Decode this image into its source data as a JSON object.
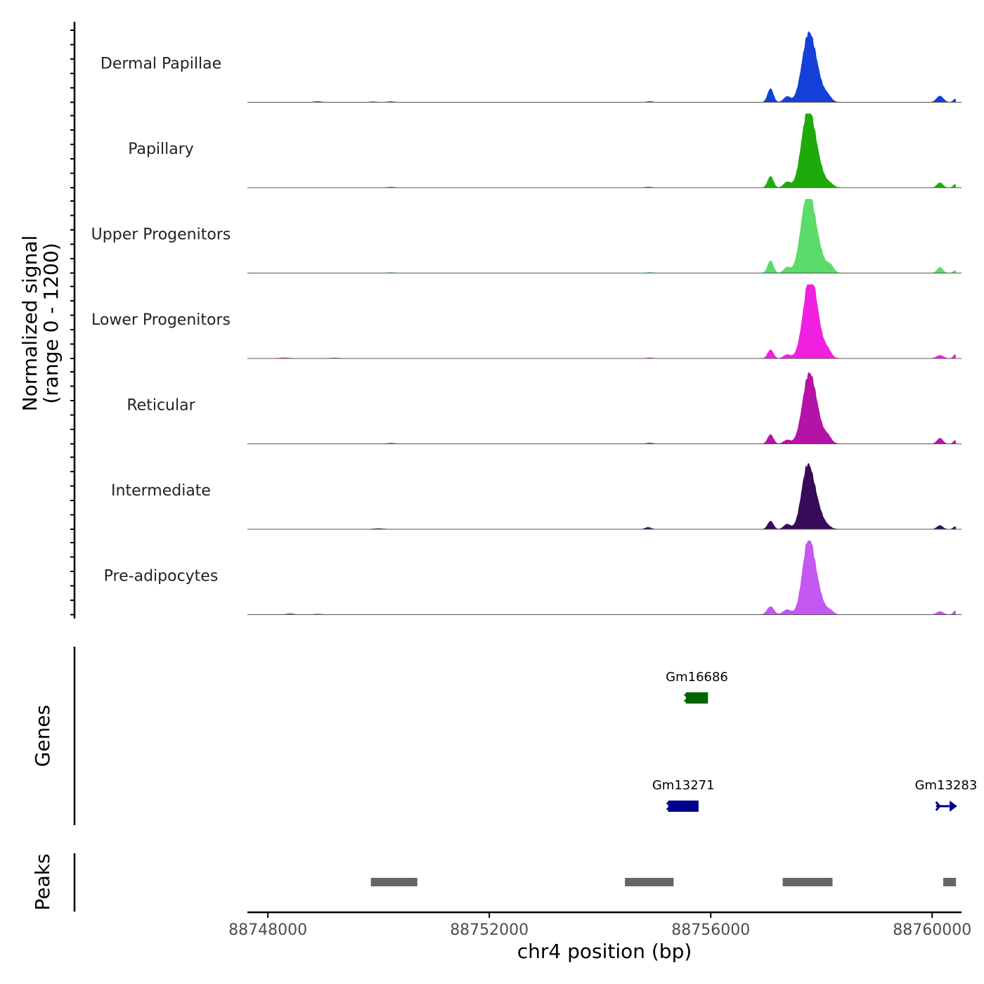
{
  "chart_data": {
    "type": "area",
    "title": "",
    "ylabel": "Normalized signal",
    "ylabel_range": "(range 0 - 1200)",
    "ylim": [
      0,
      1200
    ],
    "xlabel": "chr4 position (bp)",
    "xlim": [
      88747630,
      88760530
    ],
    "xticks": [
      88748000,
      88752000,
      88756000,
      88760000
    ],
    "xtick_labels": [
      "88748000",
      "88752000",
      "88756000",
      "88760000"
    ],
    "series": [
      {
        "name": "Dermal Papillae",
        "color": "#1440D8",
        "peaks": [
          {
            "x": 88748900,
            "y": 12,
            "w": 60
          },
          {
            "x": 88749900,
            "y": 8,
            "w": 60
          },
          {
            "x": 88750220,
            "y": 10,
            "w": 60
          },
          {
            "x": 88754900,
            "y": 12,
            "w": 50
          },
          {
            "x": 88757080,
            "y": 220,
            "w": 50
          },
          {
            "x": 88757380,
            "y": 90,
            "w": 60
          },
          {
            "x": 88757750,
            "y": 700,
            "w": 110
          },
          {
            "x": 88757850,
            "y": 520,
            "w": 140
          },
          {
            "x": 88758120,
            "y": 60,
            "w": 60
          },
          {
            "x": 88760140,
            "y": 100,
            "w": 60
          },
          {
            "x": 88760410,
            "y": 50,
            "w": 30
          }
        ]
      },
      {
        "name": "Papillary",
        "color": "#1CAB0A",
        "peaks": [
          {
            "x": 88750220,
            "y": 10,
            "w": 60
          },
          {
            "x": 88754870,
            "y": 12,
            "w": 50
          },
          {
            "x": 88757080,
            "y": 180,
            "w": 50
          },
          {
            "x": 88757380,
            "y": 90,
            "w": 60
          },
          {
            "x": 88757740,
            "y": 850,
            "w": 110
          },
          {
            "x": 88757850,
            "y": 550,
            "w": 140
          },
          {
            "x": 88758160,
            "y": 40,
            "w": 60
          },
          {
            "x": 88760140,
            "y": 80,
            "w": 50
          },
          {
            "x": 88760410,
            "y": 50,
            "w": 30
          }
        ]
      },
      {
        "name": "Upper Progenitors",
        "color": "#5ADB6A",
        "peaks": [
          {
            "x": 88750220,
            "y": 8,
            "w": 60
          },
          {
            "x": 88754900,
            "y": 10,
            "w": 50
          },
          {
            "x": 88757080,
            "y": 200,
            "w": 50
          },
          {
            "x": 88757380,
            "y": 90,
            "w": 60
          },
          {
            "x": 88757730,
            "y": 880,
            "w": 110
          },
          {
            "x": 88757850,
            "y": 600,
            "w": 140
          },
          {
            "x": 88758160,
            "y": 100,
            "w": 60
          },
          {
            "x": 88760140,
            "y": 90,
            "w": 50
          },
          {
            "x": 88760410,
            "y": 40,
            "w": 30
          }
        ]
      },
      {
        "name": "Lower Progenitors",
        "color": "#F020E0",
        "peaks": [
          {
            "x": 88748300,
            "y": 10,
            "w": 80
          },
          {
            "x": 88749200,
            "y": 8,
            "w": 80
          },
          {
            "x": 88754900,
            "y": 10,
            "w": 50
          },
          {
            "x": 88757080,
            "y": 140,
            "w": 50
          },
          {
            "x": 88757380,
            "y": 60,
            "w": 60
          },
          {
            "x": 88757780,
            "y": 820,
            "w": 110
          },
          {
            "x": 88757850,
            "y": 600,
            "w": 140
          },
          {
            "x": 88758120,
            "y": 80,
            "w": 60
          },
          {
            "x": 88760140,
            "y": 50,
            "w": 60
          },
          {
            "x": 88760410,
            "y": 60,
            "w": 30
          }
        ]
      },
      {
        "name": "Reticular",
        "color": "#B512A8",
        "peaks": [
          {
            "x": 88750220,
            "y": 10,
            "w": 60
          },
          {
            "x": 88754900,
            "y": 14,
            "w": 50
          },
          {
            "x": 88757080,
            "y": 150,
            "w": 50
          },
          {
            "x": 88757380,
            "y": 60,
            "w": 60
          },
          {
            "x": 88757760,
            "y": 720,
            "w": 110
          },
          {
            "x": 88757850,
            "y": 500,
            "w": 140
          },
          {
            "x": 88758120,
            "y": 80,
            "w": 60
          },
          {
            "x": 88760140,
            "y": 90,
            "w": 50
          },
          {
            "x": 88760410,
            "y": 50,
            "w": 30
          }
        ]
      },
      {
        "name": "Intermediate",
        "color": "#380A5A",
        "peaks": [
          {
            "x": 88750000,
            "y": 10,
            "w": 80
          },
          {
            "x": 88754870,
            "y": 30,
            "w": 50
          },
          {
            "x": 88757080,
            "y": 130,
            "w": 50
          },
          {
            "x": 88757380,
            "y": 80,
            "w": 60
          },
          {
            "x": 88757730,
            "y": 690,
            "w": 100
          },
          {
            "x": 88757850,
            "y": 500,
            "w": 130
          },
          {
            "x": 88758120,
            "y": 20,
            "w": 60
          },
          {
            "x": 88760140,
            "y": 60,
            "w": 50
          },
          {
            "x": 88760410,
            "y": 40,
            "w": 30
          }
        ]
      },
      {
        "name": "Pre-adipocytes",
        "color": "#C557F2",
        "peaks": [
          {
            "x": 88748400,
            "y": 20,
            "w": 60
          },
          {
            "x": 88748900,
            "y": 12,
            "w": 60
          },
          {
            "x": 88757080,
            "y": 130,
            "w": 60
          },
          {
            "x": 88757380,
            "y": 80,
            "w": 70
          },
          {
            "x": 88757750,
            "y": 850,
            "w": 100
          },
          {
            "x": 88757860,
            "y": 520,
            "w": 130
          },
          {
            "x": 88758160,
            "y": 50,
            "w": 60
          },
          {
            "x": 88760140,
            "y": 50,
            "w": 60
          },
          {
            "x": 88760410,
            "y": 60,
            "w": 30
          }
        ]
      }
    ],
    "genes_label": "Genes",
    "genes": [
      {
        "name": "Gm16686",
        "start": 88755550,
        "end": 88755950,
        "strand": "-",
        "color": "#006400",
        "row": 1
      },
      {
        "name": "Gm13271",
        "start": 88755230,
        "end": 88755780,
        "strand": "-",
        "color": "#00008B",
        "row": 2
      },
      {
        "name": "Gm13283",
        "start": 88760070,
        "end": 88760430,
        "strand": "+",
        "color": "#00008B",
        "row": 2
      }
    ],
    "peaks_label": "Peaks",
    "peaks_color": "#666666",
    "peak_regions": [
      [
        88749860,
        88750700
      ],
      [
        88754450,
        88755330
      ],
      [
        88757300,
        88758200
      ],
      [
        88760200,
        88760430
      ]
    ]
  }
}
